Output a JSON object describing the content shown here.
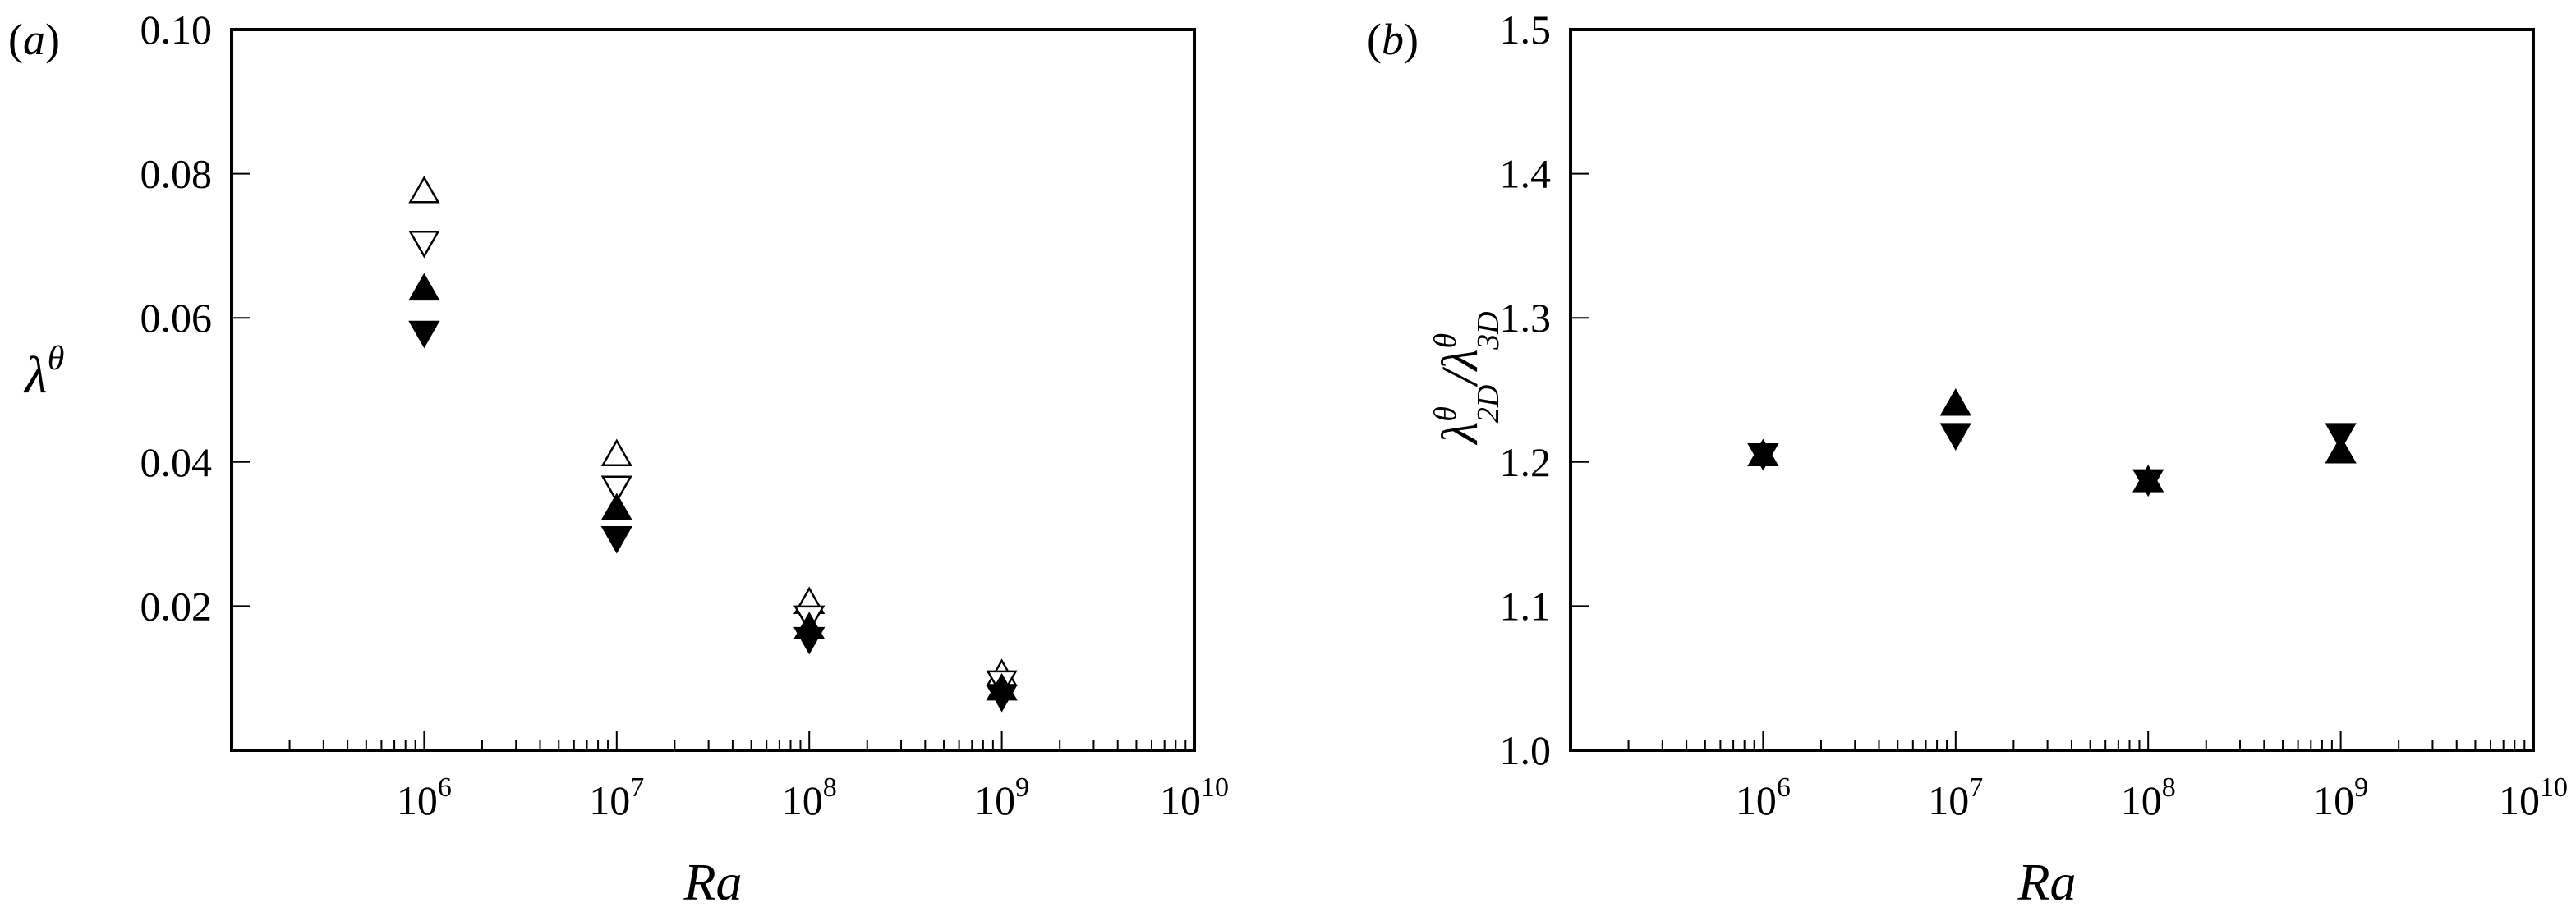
{
  "chart_data": [
    {
      "panel_label": "(a)",
      "panel_letter": "a",
      "type": "scatter",
      "xlabel": "Ra",
      "ylabel": "λ",
      "ylabel_superscript": "θ",
      "xscale": "log",
      "xlim": [
        100000.0,
        10000000000.0
      ],
      "ylim": [
        0,
        0.1
      ],
      "yticks": [
        0.02,
        0.04,
        0.06,
        0.08,
        0.1
      ],
      "ytick_labels": [
        "0.02",
        "0.04",
        "0.06",
        "0.08",
        "0.10"
      ],
      "xticks": [
        1000000.0,
        10000000.0,
        100000000.0,
        1000000000.0,
        10000000000.0
      ],
      "xtick_bases": [
        "10",
        "10",
        "10",
        "10",
        "10"
      ],
      "xtick_exponents": [
        "6",
        "7",
        "8",
        "9",
        "10"
      ],
      "grid": false,
      "series": [
        {
          "marker": "triangle-up-open",
          "x": [
            1000000.0,
            10000000.0,
            100000000.0,
            1000000000.0
          ],
          "y": [
            0.0775,
            0.041,
            0.0205,
            0.0105
          ]
        },
        {
          "marker": "triangle-down-open",
          "x": [
            1000000.0,
            10000000.0,
            100000000.0,
            1000000000.0
          ],
          "y": [
            0.0705,
            0.0365,
            0.0185,
            0.0095
          ]
        },
        {
          "marker": "triangle-up-filled",
          "x": [
            1000000.0,
            10000000.0,
            100000000.0,
            1000000000.0
          ],
          "y": [
            0.064,
            0.0335,
            0.017,
            0.0085
          ]
        },
        {
          "marker": "triangle-down-filled",
          "x": [
            1000000.0,
            10000000.0,
            100000000.0,
            1000000000.0
          ],
          "y": [
            0.058,
            0.0295,
            0.0155,
            0.0075
          ]
        }
      ]
    },
    {
      "panel_label": "(b)",
      "panel_letter": "b",
      "type": "scatter",
      "xlabel": "Ra",
      "ylabel": "λ_2D^θ / λ_3D^θ",
      "xscale": "log",
      "xlim": [
        100000.0,
        10000000000.0
      ],
      "ylim": [
        1.0,
        1.5
      ],
      "yticks": [
        1.0,
        1.1,
        1.2,
        1.3,
        1.4,
        1.5
      ],
      "ytick_labels": [
        "1.0",
        "1.1",
        "1.2",
        "1.3",
        "1.4",
        "1.5"
      ],
      "xticks": [
        1000000.0,
        10000000.0,
        100000000.0,
        1000000000.0,
        10000000000.0
      ],
      "xtick_bases": [
        "10",
        "10",
        "10",
        "10",
        "10"
      ],
      "xtick_exponents": [
        "6",
        "7",
        "8",
        "9",
        "10"
      ],
      "grid": false,
      "series": [
        {
          "marker": "triangle-up-filled",
          "x": [
            1000000.0,
            10000000.0,
            100000000.0,
            1000000000.0
          ],
          "y": [
            1.205,
            1.24,
            1.187,
            1.207
          ]
        },
        {
          "marker": "triangle-down-filled",
          "x": [
            1000000.0,
            10000000.0,
            100000000.0,
            1000000000.0
          ],
          "y": [
            1.205,
            1.219,
            1.187,
            1.219
          ]
        }
      ]
    }
  ]
}
